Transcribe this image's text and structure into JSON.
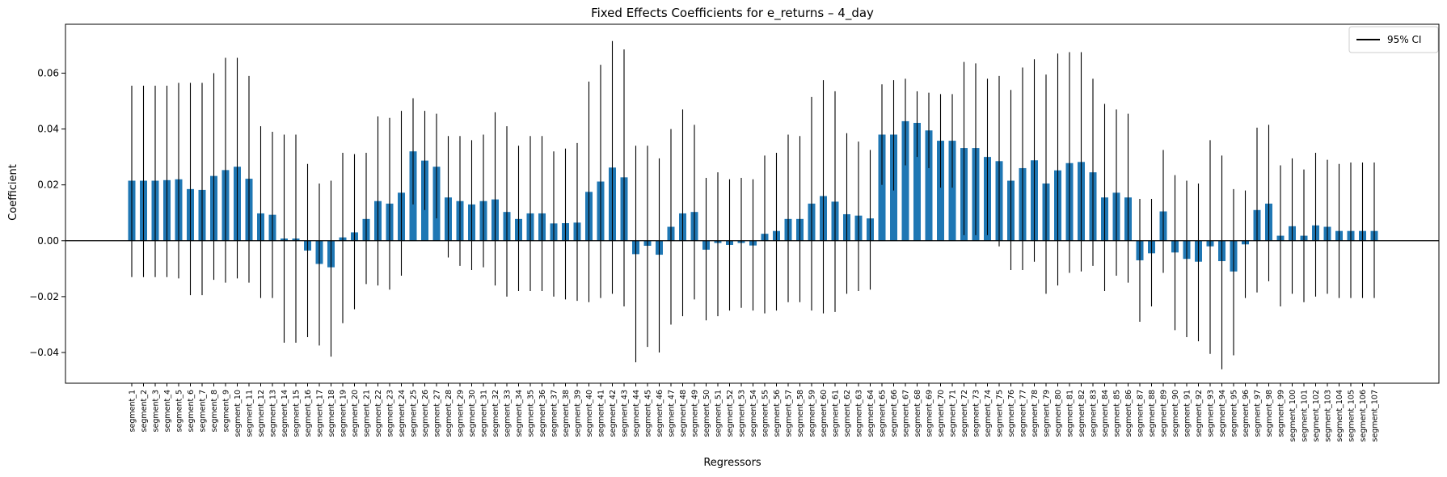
{
  "chart_data": {
    "type": "bar",
    "title": "Fixed Effects Coefficients for e_returns – 4_day",
    "xlabel": "Regressors",
    "ylabel": "Coefficient",
    "ylim": [
      -0.051,
      0.0775
    ],
    "yticks": [
      -0.04,
      -0.02,
      0.0,
      0.02,
      0.04,
      0.06
    ],
    "ytick_labels": [
      "−0.04",
      "−0.02",
      "0.00",
      "0.02",
      "0.04",
      "0.06"
    ],
    "grid": false,
    "legend": {
      "position": "top-right",
      "entries": [
        "95% CI"
      ]
    },
    "colors": {
      "bar": "#1f77b4",
      "error": "#000000",
      "zero_line": "#000000"
    },
    "categories": [
      "segment_1",
      "segment_2",
      "segment_3",
      "segment_4",
      "segment_5",
      "segment_6",
      "segment_7",
      "segment_8",
      "segment_9",
      "segment_10",
      "segment_11",
      "segment_12",
      "segment_13",
      "segment_14",
      "segment_15",
      "segment_16",
      "segment_17",
      "segment_18",
      "segment_19",
      "segment_20",
      "segment_21",
      "segment_22",
      "segment_23",
      "segment_24",
      "segment_25",
      "segment_26",
      "segment_27",
      "segment_28",
      "segment_29",
      "segment_30",
      "segment_31",
      "segment_32",
      "segment_33",
      "segment_34",
      "segment_35",
      "segment_36",
      "segment_37",
      "segment_38",
      "segment_39",
      "segment_40",
      "segment_41",
      "segment_42",
      "segment_43",
      "segment_44",
      "segment_45",
      "segment_46",
      "segment_47",
      "segment_48",
      "segment_49",
      "segment_50",
      "segment_51",
      "segment_52",
      "segment_53",
      "segment_54",
      "segment_55",
      "segment_56",
      "segment_57",
      "segment_58",
      "segment_59",
      "segment_60",
      "segment_61",
      "segment_62",
      "segment_63",
      "segment_64",
      "segment_65",
      "segment_66",
      "segment_67",
      "segment_68",
      "segment_69",
      "segment_70",
      "segment_71",
      "segment_72",
      "segment_73",
      "segment_74",
      "segment_75",
      "segment_76",
      "segment_77",
      "segment_78",
      "segment_79",
      "segment_80",
      "segment_81",
      "segment_82",
      "segment_83",
      "segment_84",
      "segment_85",
      "segment_86",
      "segment_87",
      "segment_88",
      "segment_89",
      "segment_90",
      "segment_91",
      "segment_92",
      "segment_93",
      "segment_94",
      "segment_95",
      "segment_96",
      "segment_97",
      "segment_98",
      "segment_99",
      "segment_100",
      "segment_101",
      "segment_102",
      "segment_103",
      "segment_104",
      "segment_105",
      "segment_106",
      "segment_107"
    ],
    "values": [
      0.0215,
      0.0215,
      0.0215,
      0.0217,
      0.022,
      0.0185,
      0.0182,
      0.0232,
      0.0253,
      0.0265,
      0.0222,
      0.0098,
      0.0093,
      0.0008,
      0.0008,
      -0.0035,
      -0.0083,
      -0.0095,
      0.0012,
      0.003,
      0.0078,
      0.0142,
      0.0133,
      0.0172,
      0.032,
      0.0287,
      0.0265,
      0.0155,
      0.0142,
      0.013,
      0.0142,
      0.0148,
      0.0103,
      0.0078,
      0.0098,
      0.0098,
      0.0062,
      0.0063,
      0.0065,
      0.0175,
      0.0212,
      0.0262,
      0.0227,
      -0.0048,
      -0.0018,
      -0.005,
      0.005,
      0.0098,
      0.0103,
      -0.0032,
      -0.0008,
      -0.0015,
      -0.0008,
      -0.0017,
      0.0025,
      0.0035,
      0.0078,
      0.0078,
      0.0133,
      0.016,
      0.014,
      0.0095,
      0.009,
      0.008,
      0.038,
      0.038,
      0.0428,
      0.0422,
      0.0395,
      0.0358,
      0.0358,
      0.0332,
      0.0332,
      0.03,
      0.0285,
      0.0215,
      0.026,
      0.0288,
      0.0205,
      0.0252,
      0.0278,
      0.0282,
      0.0245,
      0.0155,
      0.0172,
      0.0155,
      -0.007,
      -0.0045,
      0.0105,
      -0.0042,
      -0.0065,
      -0.0075,
      -0.002,
      -0.0073,
      -0.011,
      -0.0013,
      0.011,
      0.0133,
      0.0018,
      0.0052,
      0.0018,
      0.0055,
      0.005,
      0.0035,
      0.0035,
      0.0035,
      0.0035
    ],
    "ci_low": [
      -0.013,
      -0.013,
      -0.013,
      -0.013,
      -0.0135,
      -0.0195,
      -0.0195,
      -0.014,
      -0.015,
      -0.0135,
      -0.015,
      -0.0205,
      -0.0205,
      -0.0365,
      -0.0365,
      -0.0345,
      -0.0375,
      -0.0415,
      -0.0295,
      -0.0245,
      -0.0155,
      -0.016,
      -0.0175,
      -0.0125,
      0.013,
      0.011,
      0.008,
      -0.006,
      -0.009,
      -0.0105,
      -0.0095,
      -0.016,
      -0.02,
      -0.018,
      -0.018,
      -0.018,
      -0.02,
      -0.021,
      -0.0215,
      -0.022,
      -0.0205,
      -0.019,
      -0.0235,
      -0.0435,
      -0.038,
      -0.04,
      -0.03,
      -0.027,
      -0.021,
      -0.0285,
      -0.027,
      -0.025,
      -0.024,
      -0.025,
      -0.026,
      -0.025,
      -0.022,
      -0.022,
      -0.025,
      -0.026,
      -0.0255,
      -0.019,
      -0.018,
      -0.0175,
      0.02,
      0.018,
      0.027,
      0.03,
      0.026,
      0.019,
      0.019,
      0.002,
      0.002,
      0.002,
      -0.002,
      -0.0105,
      -0.0105,
      -0.0075,
      -0.019,
      -0.016,
      -0.0115,
      -0.011,
      -0.009,
      -0.018,
      -0.0125,
      -0.015,
      -0.029,
      -0.0235,
      -0.0115,
      -0.032,
      -0.0345,
      -0.036,
      -0.0405,
      -0.046,
      -0.041,
      -0.0205,
      -0.0185,
      -0.0145,
      -0.0235,
      -0.019,
      -0.022,
      -0.02,
      -0.019,
      -0.0205,
      -0.0205,
      -0.0205,
      -0.0205
    ],
    "ci_high": [
      0.0555,
      0.0555,
      0.0555,
      0.0555,
      0.0565,
      0.0565,
      0.0565,
      0.06,
      0.0655,
      0.0655,
      0.059,
      0.041,
      0.039,
      0.038,
      0.038,
      0.0275,
      0.0205,
      0.0215,
      0.0315,
      0.031,
      0.0315,
      0.0445,
      0.044,
      0.0465,
      0.051,
      0.0465,
      0.0455,
      0.0375,
      0.0375,
      0.036,
      0.038,
      0.046,
      0.041,
      0.034,
      0.0375,
      0.0375,
      0.032,
      0.033,
      0.035,
      0.057,
      0.063,
      0.0715,
      0.0685,
      0.034,
      0.034,
      0.0295,
      0.04,
      0.047,
      0.0415,
      0.0225,
      0.0245,
      0.022,
      0.0225,
      0.022,
      0.0305,
      0.0315,
      0.038,
      0.0375,
      0.0515,
      0.0575,
      0.0535,
      0.0385,
      0.0355,
      0.0325,
      0.056,
      0.0575,
      0.058,
      0.0535,
      0.053,
      0.0525,
      0.0525,
      0.064,
      0.0635,
      0.058,
      0.059,
      0.054,
      0.062,
      0.065,
      0.0595,
      0.067,
      0.0675,
      0.0675,
      0.058,
      0.049,
      0.047,
      0.0455,
      0.015,
      0.015,
      0.0325,
      0.0235,
      0.0215,
      0.0205,
      0.036,
      0.0305,
      0.0185,
      0.018,
      0.0405,
      0.0415,
      0.027,
      0.0295,
      0.0255,
      0.0315,
      0.029,
      0.0275,
      0.028,
      0.028,
      0.028
    ]
  }
}
